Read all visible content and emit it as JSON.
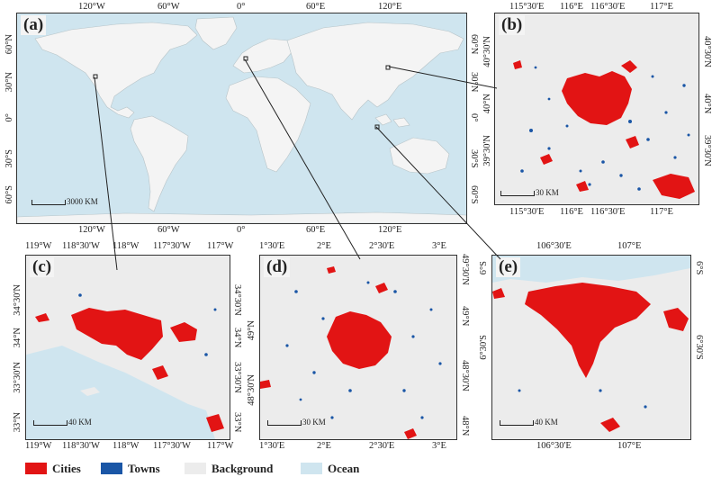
{
  "colors": {
    "cities": "#e21414",
    "towns": "#1a56a6",
    "background": "#ececec",
    "ocean": "#cfe5ef",
    "land": "#f4f4f4"
  },
  "panels": {
    "a": {
      "label": "(a)",
      "top_ticks": [
        "120°W",
        "60°W",
        "0°",
        "60°E",
        "120°E"
      ],
      "bottom_ticks": [
        "120°W",
        "60°W",
        "0°",
        "60°E",
        "120°E"
      ],
      "left_ticks": [
        "60°N",
        "30°N",
        "0°",
        "30°S",
        "60°S"
      ],
      "right_ticks": [
        "60°N",
        "30°N",
        "0°",
        "30°S",
        "60°S"
      ],
      "scale": "3000 KM"
    },
    "b": {
      "label": "(b)",
      "top_ticks": [
        "115°30'E",
        "116°E",
        "116°30'E",
        "117°E"
      ],
      "bottom_ticks": [
        "115°30'E",
        "116°E",
        "116°30'E",
        "117°E"
      ],
      "left_ticks": [
        "40°30'N",
        "40°N",
        "39°30'N"
      ],
      "right_ticks": [
        "40°30'N",
        "40°N",
        "39°30'N"
      ],
      "scale": "30 KM"
    },
    "c": {
      "label": "(c)",
      "top_ticks": [
        "119°W",
        "118°30'W",
        "118°W",
        "117°30'W",
        "117°W"
      ],
      "bottom_ticks": [
        "119°W",
        "118°30'W",
        "118°W",
        "117°30'W",
        "117°W"
      ],
      "left_ticks": [
        "34°30'N",
        "34°N",
        "33°30'N",
        "33°N"
      ],
      "right_ticks": [
        "34°30'N",
        "34°N",
        "33°30'N",
        "33°N"
      ],
      "scale": "40 KM"
    },
    "d": {
      "label": "(d)",
      "top_ticks": [
        "1°30'E",
        "2°E",
        "2°30'E",
        "3°E"
      ],
      "bottom_ticks": [
        "1°30'E",
        "2°E",
        "2°30'E",
        "3°E"
      ],
      "left_ticks": [
        "49°N",
        "48°30'N"
      ],
      "right_ticks": [
        "49°30'N",
        "49°N",
        "48°30'N",
        "48°N"
      ],
      "scale": "30 KM"
    },
    "e": {
      "label": "(e)",
      "top_ticks": [
        "106°30'E",
        "107°E"
      ],
      "bottom_ticks": [
        "106°30'E",
        "107°E"
      ],
      "left_ticks": [
        "6°S",
        "6°30'S"
      ],
      "right_ticks": [
        "6°S",
        "6°30'S"
      ],
      "scale": "40 KM"
    }
  },
  "legend": [
    {
      "label": "Cities",
      "color": "#e21414"
    },
    {
      "label": "Towns",
      "color": "#1a56a6"
    },
    {
      "label": "Background",
      "color": "#ececec"
    },
    {
      "label": "Ocean",
      "color": "#cfe5ef"
    }
  ]
}
